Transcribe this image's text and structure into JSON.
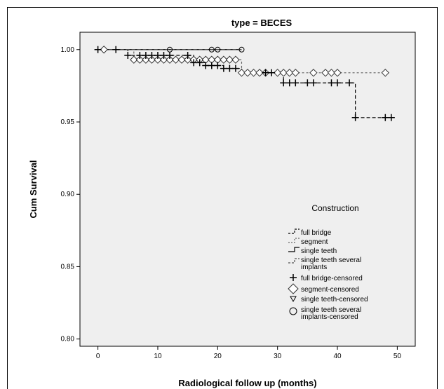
{
  "chart_data": {
    "type": "line",
    "title": "type = BECES",
    "xlabel": "Radiological follow up (months)",
    "ylabel": "Cum Survival",
    "xlim": [
      -3,
      53
    ],
    "ylim": [
      0.795,
      1.012
    ],
    "xticks": [
      0,
      10,
      20,
      30,
      40,
      50
    ],
    "yticks": [
      0.8,
      0.85,
      0.9,
      0.95,
      1.0
    ],
    "ytick_labels": [
      "0.80",
      "0.85",
      "0.90",
      "0.95",
      "1.00"
    ],
    "legend_title": "Construction",
    "legend_position": "right-inside",
    "series": [
      {
        "name": "full bridge",
        "style": "dashed",
        "color": "#000000",
        "steps": [
          [
            0,
            1.0
          ],
          [
            5,
            0.996
          ],
          [
            16,
            0.991
          ],
          [
            18,
            0.989
          ],
          [
            21,
            0.987
          ],
          [
            24,
            0.984
          ],
          [
            31,
            0.977
          ],
          [
            43,
            0.953
          ],
          [
            49,
            0.953
          ]
        ],
        "censored": [
          0,
          3,
          5,
          7,
          8,
          9,
          10,
          11,
          12,
          15,
          16,
          17,
          18,
          19,
          20,
          21,
          22,
          23,
          28,
          29,
          31,
          32,
          33,
          35,
          36,
          39,
          40,
          42,
          43,
          48,
          49
        ]
      },
      {
        "name": "segment",
        "style": "dotted",
        "color": "#666666",
        "steps": [
          [
            0,
            1.0
          ],
          [
            6,
            0.993
          ],
          [
            24,
            0.984
          ],
          [
            48,
            0.984
          ]
        ],
        "censored": [
          1,
          6,
          7,
          8,
          9,
          10,
          11,
          12,
          13,
          14,
          15,
          16,
          17,
          18,
          19,
          20,
          21,
          22,
          23,
          24,
          25,
          26,
          27,
          28,
          30,
          31,
          32,
          33,
          36,
          38,
          39,
          40,
          48
        ]
      },
      {
        "name": "single teeth",
        "style": "solid",
        "color": "#000000",
        "steps": [
          [
            0,
            1.0
          ],
          [
            24,
            1.0
          ]
        ],
        "censored": []
      },
      {
        "name": "single teeth several implants",
        "style": "dashed",
        "color": "#555555",
        "steps": [
          [
            0,
            1.0
          ],
          [
            24,
            1.0
          ]
        ],
        "censored": [
          12,
          19,
          20,
          24
        ]
      }
    ],
    "legend_entries": [
      "full bridge",
      "segment",
      "single teeth",
      "single teeth several implants",
      "full bridge-censored",
      "segment-censored",
      "single teeth-censored",
      "single teeth several implants-censored"
    ]
  }
}
